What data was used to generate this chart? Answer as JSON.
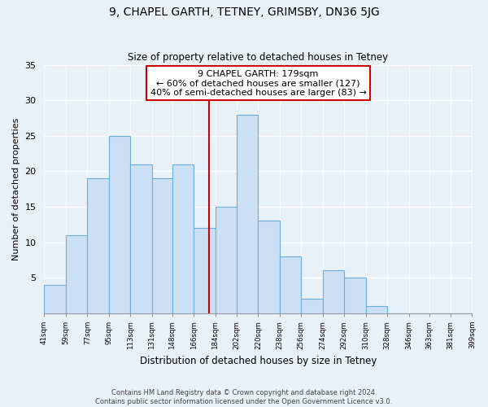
{
  "title": "9, CHAPEL GARTH, TETNEY, GRIMSBY, DN36 5JG",
  "subtitle": "Size of property relative to detached houses in Tetney",
  "xlabel": "Distribution of detached houses by size in Tetney",
  "ylabel": "Number of detached properties",
  "bin_labels": [
    "41sqm",
    "59sqm",
    "77sqm",
    "95sqm",
    "113sqm",
    "131sqm",
    "148sqm",
    "166sqm",
    "184sqm",
    "202sqm",
    "220sqm",
    "238sqm",
    "256sqm",
    "274sqm",
    "292sqm",
    "310sqm",
    "328sqm",
    "346sqm",
    "363sqm",
    "381sqm",
    "399sqm"
  ],
  "bin_edges": [
    41,
    59,
    77,
    95,
    113,
    131,
    148,
    166,
    184,
    202,
    220,
    238,
    256,
    274,
    292,
    310,
    328,
    346,
    363,
    381,
    399
  ],
  "counts": [
    4,
    11,
    19,
    25,
    21,
    19,
    21,
    12,
    15,
    28,
    13,
    8,
    2,
    6,
    5,
    1,
    0,
    0,
    0,
    0
  ],
  "bar_color": "#cce0f5",
  "bar_edge_color": "#6aaed6",
  "vline_x": 179,
  "vline_color": "#cc0000",
  "annotation_title": "9 CHAPEL GARTH: 179sqm",
  "annotation_line1": "← 60% of detached houses are smaller (127)",
  "annotation_line2": "40% of semi-detached houses are larger (83) →",
  "annotation_box_edge": "#cc0000",
  "ylim": [
    0,
    35
  ],
  "yticks": [
    0,
    5,
    10,
    15,
    20,
    25,
    30,
    35
  ],
  "footer_line1": "Contains HM Land Registry data © Crown copyright and database right 2024.",
  "footer_line2": "Contains public sector information licensed under the Open Government Licence v3.0.",
  "background_color": "#e8f0f8",
  "plot_bg_color": "#e8f0f8",
  "grid_color": "#ffffff"
}
